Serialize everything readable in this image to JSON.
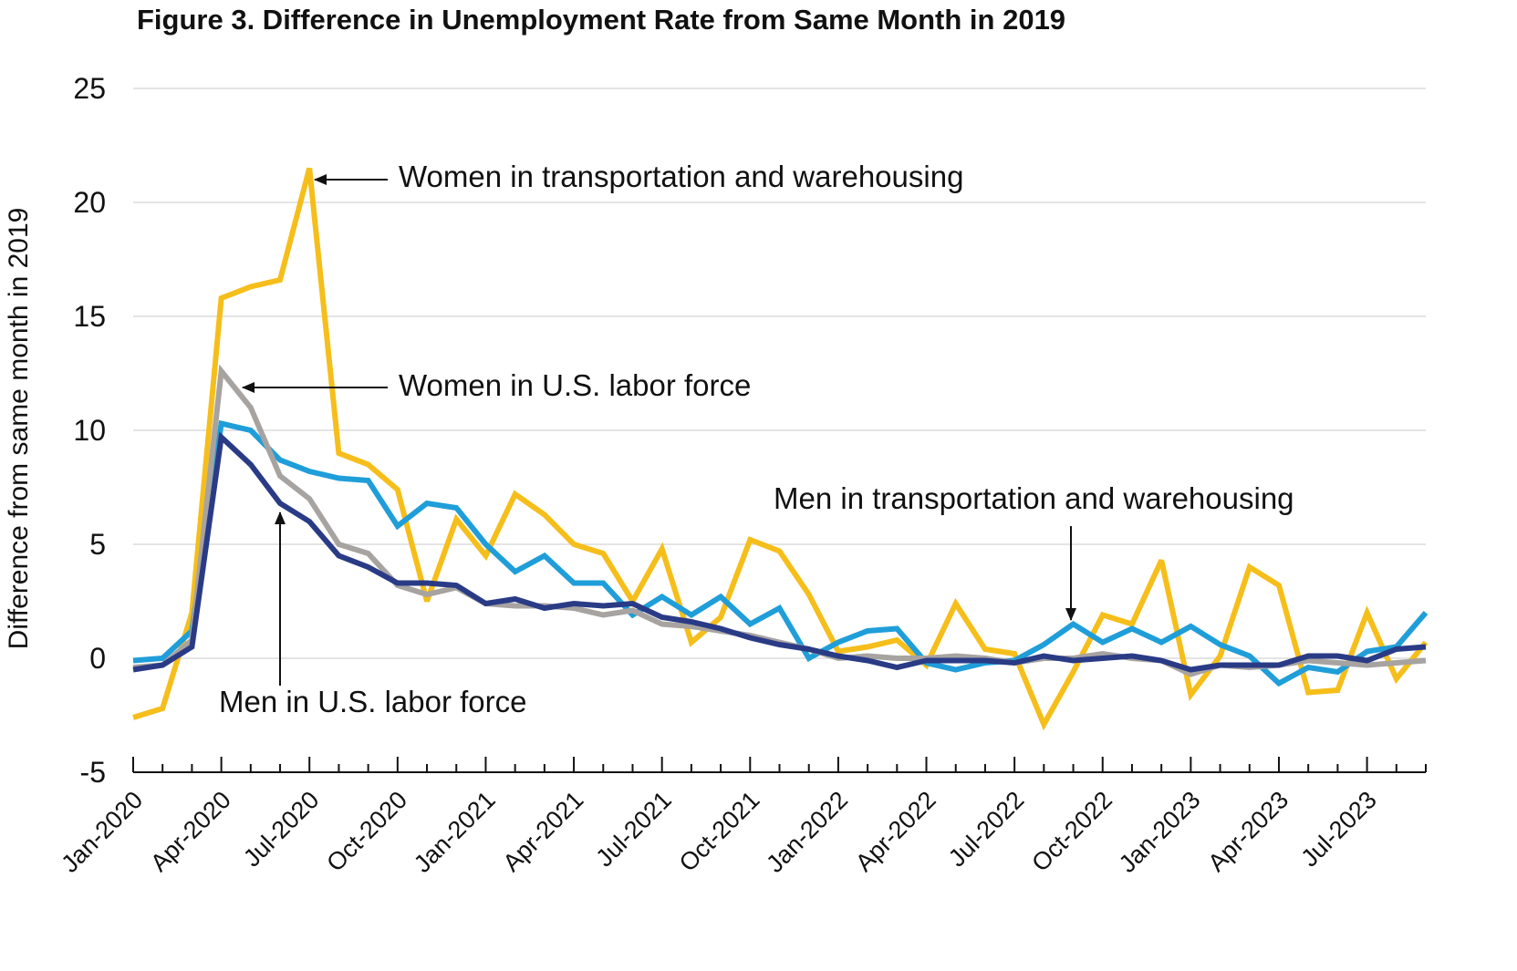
{
  "chart_data": {
    "type": "line",
    "title": "Figure 3. Difference in Unemployment Rate from Same Month in 2019",
    "xlabel": "",
    "ylabel": "Difference from same month in 2019",
    "ylim": [
      -5,
      25
    ],
    "yticks": [
      "25",
      "20",
      "15",
      "10",
      "5",
      "0",
      "-5"
    ],
    "ytick_values": [
      25,
      20,
      15,
      10,
      5,
      0,
      -5
    ],
    "grid": true,
    "x": [
      "Jan-2020",
      "Feb-2020",
      "Mar-2020",
      "Apr-2020",
      "May-2020",
      "Jun-2020",
      "Jul-2020",
      "Aug-2020",
      "Sep-2020",
      "Oct-2020",
      "Nov-2020",
      "Dec-2020",
      "Jan-2021",
      "Feb-2021",
      "Mar-2021",
      "Apr-2021",
      "May-2021",
      "Jun-2021",
      "Jul-2021",
      "Aug-2021",
      "Sep-2021",
      "Oct-2021",
      "Nov-2021",
      "Dec-2021",
      "Jan-2022",
      "Feb-2022",
      "Mar-2022",
      "Apr-2022",
      "May-2022",
      "Jun-2022",
      "Jul-2022",
      "Aug-2022",
      "Sep-2022",
      "Oct-2022",
      "Nov-2022",
      "Dec-2022",
      "Jan-2023",
      "Feb-2023",
      "Mar-2023",
      "Apr-2023",
      "May-2023",
      "Jun-2023",
      "Jul-2023",
      "Aug-2023",
      "Sep-2023"
    ],
    "xtick_labels": [
      "Jan-2020",
      "Apr-2020",
      "Jul-2020",
      "Oct-2020",
      "Jan-2021",
      "Apr-2021",
      "Jul-2021",
      "Oct-2021",
      "Jan-2022",
      "Apr-2022",
      "Jul-2022",
      "Oct-2022",
      "Jan-2023",
      "Apr-2023",
      "Jul-2023"
    ],
    "xtick_indices": [
      0,
      3,
      6,
      9,
      12,
      15,
      18,
      21,
      24,
      27,
      30,
      33,
      36,
      39,
      42
    ],
    "series": [
      {
        "name": "Women in transportation and warehousing",
        "color": "#F6BE1A",
        "values": [
          -2.6,
          -2.2,
          2.0,
          15.8,
          16.3,
          16.6,
          21.5,
          9.0,
          8.5,
          7.4,
          2.5,
          6.1,
          4.5,
          7.2,
          6.3,
          5.0,
          4.6,
          2.5,
          4.8,
          0.7,
          1.8,
          5.2,
          4.7,
          2.8,
          0.3,
          0.5,
          0.8,
          -0.3,
          2.4,
          0.4,
          0.2,
          -2.9,
          -0.6,
          1.9,
          1.5,
          4.3,
          -1.6,
          0.1,
          4.0,
          3.2,
          -1.5,
          -1.4,
          2.0,
          -0.9,
          0.7
        ]
      },
      {
        "name": "Men in transportation and warehousing",
        "color": "#1F9ED9",
        "values": [
          -0.1,
          0.0,
          1.2,
          10.3,
          10.0,
          8.7,
          8.2,
          7.9,
          7.8,
          5.8,
          6.8,
          6.6,
          5.0,
          3.8,
          4.5,
          3.3,
          3.3,
          1.9,
          2.7,
          1.9,
          2.7,
          1.5,
          2.2,
          0.0,
          0.7,
          1.2,
          1.3,
          -0.2,
          -0.5,
          -0.2,
          -0.1,
          0.6,
          1.5,
          0.7,
          1.3,
          0.7,
          1.4,
          0.6,
          0.1,
          -1.1,
          -0.4,
          -0.6,
          0.3,
          0.5,
          2.0
        ]
      },
      {
        "name": "Women in U.S. labor force",
        "color": "#A7A3A1",
        "values": [
          -0.4,
          -0.3,
          0.8,
          12.6,
          11.0,
          8.0,
          7.0,
          5.0,
          4.6,
          3.2,
          2.8,
          3.1,
          2.4,
          2.3,
          2.3,
          2.2,
          1.9,
          2.1,
          1.5,
          1.4,
          1.2,
          1.0,
          0.7,
          0.4,
          0.0,
          0.1,
          0.0,
          0.0,
          0.1,
          0.0,
          -0.2,
          0.0,
          0.0,
          0.2,
          0.0,
          -0.1,
          -0.7,
          -0.3,
          -0.4,
          -0.3,
          -0.1,
          -0.2,
          -0.3,
          -0.2,
          -0.1
        ]
      },
      {
        "name": "Men in U.S. labor force",
        "color": "#2A3B86",
        "values": [
          -0.5,
          -0.3,
          0.5,
          9.7,
          8.5,
          6.8,
          6.0,
          4.5,
          4.0,
          3.3,
          3.3,
          3.2,
          2.4,
          2.6,
          2.2,
          2.4,
          2.3,
          2.4,
          1.8,
          1.6,
          1.3,
          0.9,
          0.6,
          0.4,
          0.1,
          -0.1,
          -0.4,
          -0.1,
          -0.1,
          -0.1,
          -0.2,
          0.1,
          -0.1,
          0.0,
          0.1,
          -0.1,
          -0.5,
          -0.3,
          -0.3,
          -0.3,
          0.1,
          0.1,
          -0.1,
          0.4,
          0.5
        ]
      }
    ],
    "annotations": [
      {
        "text": "Women in transportation and warehousing",
        "series": 0,
        "point_index": 6
      },
      {
        "text": "Women in U.S. labor force",
        "series": 2,
        "point_index": 3
      },
      {
        "text": "Men in transportation and warehousing",
        "series": 1,
        "point_index": 32
      },
      {
        "text": "Men in U.S. labor force",
        "series": 3,
        "point_index": 5
      }
    ]
  }
}
